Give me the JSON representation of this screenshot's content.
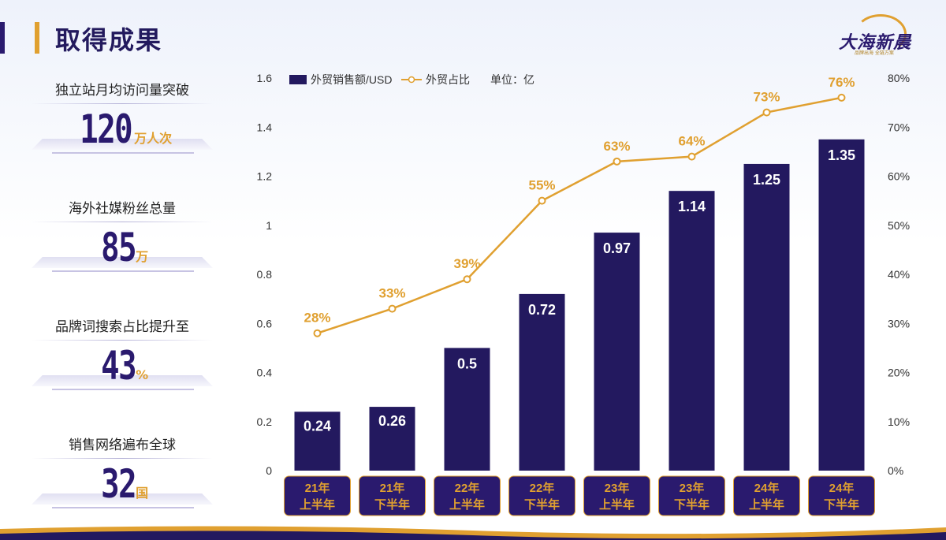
{
  "header": {
    "title": "取得成果"
  },
  "logo": {
    "name": "大海新晨",
    "tagline": "品牌出海 全链方案"
  },
  "stats": [
    {
      "label": "独立站月均访问量突破",
      "value": "120",
      "unit": "万人次"
    },
    {
      "label": "海外社媒粉丝总量",
      "value": "85",
      "unit": "万"
    },
    {
      "label": "品牌词搜索占比提升至",
      "value": "43",
      "unit": "%"
    },
    {
      "label": "销售网络遍布全球",
      "value": "32",
      "unit": "国"
    }
  ],
  "colors": {
    "bar": "#23195f",
    "line": "#e0a030",
    "label_bg": "#2a1a6e"
  },
  "chart_data": {
    "type": "bar",
    "legend": [
      "外贸销售额/USD",
      "外贸占比"
    ],
    "unit_note": "单位：亿",
    "categories": [
      [
        "21年",
        "上半年"
      ],
      [
        "21年",
        "下半年"
      ],
      [
        "22年",
        "上半年"
      ],
      [
        "22年",
        "下半年"
      ],
      [
        "23年",
        "上半年"
      ],
      [
        "23年",
        "下半年"
      ],
      [
        "24年",
        "上半年"
      ],
      [
        "24年",
        "下半年"
      ]
    ],
    "series": [
      {
        "name": "外贸销售额/USD",
        "type": "bar",
        "axis": "left",
        "values": [
          0.24,
          0.26,
          0.5,
          0.72,
          0.97,
          1.14,
          1.25,
          1.35
        ],
        "labels": [
          "0.24",
          "0.26",
          "0.5",
          "0.72",
          "0.97",
          "1.14",
          "1.25",
          "1.35"
        ]
      },
      {
        "name": "外贸占比",
        "type": "line",
        "axis": "right",
        "values": [
          28,
          33,
          39,
          55,
          63,
          64,
          73,
          76
        ],
        "labels": [
          "28%",
          "33%",
          "39%",
          "55%",
          "63%",
          "64%",
          "73%",
          "76%"
        ]
      }
    ],
    "y_left": {
      "min": 0,
      "max": 1.6,
      "ticks": [
        "0",
        "0.2",
        "0.4",
        "0.6",
        "0.8",
        "1",
        "1.2",
        "1.4",
        "1.6"
      ]
    },
    "y_right": {
      "min": 0,
      "max": 80,
      "ticks": [
        "0%",
        "10%",
        "20%",
        "30%",
        "40%",
        "50%",
        "60%",
        "70%",
        "80%"
      ]
    }
  }
}
